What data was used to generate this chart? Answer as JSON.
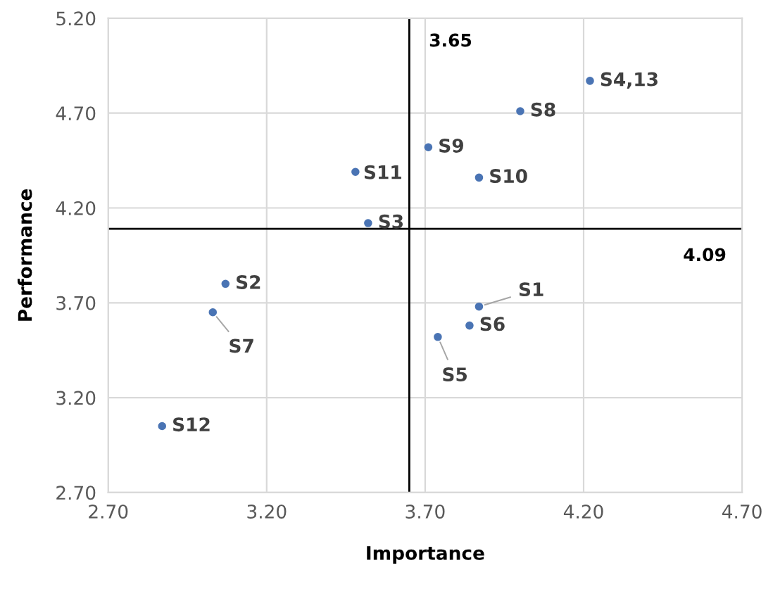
{
  "chart_data": {
    "type": "scatter",
    "xlabel": "Importance",
    "ylabel": "Performance",
    "x": [
      3.87,
      3.07,
      3.52,
      4.22,
      3.74,
      3.84,
      3.03,
      4.0,
      3.71,
      3.87,
      3.48,
      2.87
    ],
    "series": [
      {
        "color": "#4a74b4",
        "values": [
          3.68,
          3.8,
          4.12,
          4.87,
          3.52,
          3.58,
          3.65,
          4.71,
          4.52,
          4.36,
          4.39,
          3.05
        ]
      }
    ],
    "annotations": [
      {
        "text": "S1",
        "x": 3.87,
        "y": 3.68
      },
      {
        "text": "S2",
        "x": 3.07,
        "y": 3.8
      },
      {
        "text": "S3",
        "x": 3.52,
        "y": 4.12
      },
      {
        "text": "S4,13",
        "x": 4.22,
        "y": 4.87
      },
      {
        "text": "S5",
        "x": 3.74,
        "y": 3.52
      },
      {
        "text": "S6",
        "x": 3.84,
        "y": 3.58
      },
      {
        "text": "S7",
        "x": 3.03,
        "y": 3.65
      },
      {
        "text": "S8",
        "x": 4.0,
        "y": 4.71
      },
      {
        "text": "S9",
        "x": 3.71,
        "y": 4.52
      },
      {
        "text": "S10",
        "x": 3.87,
        "y": 4.36
      },
      {
        "text": "S11",
        "x": 3.48,
        "y": 4.39
      },
      {
        "text": "S12",
        "x": 2.87,
        "y": 3.05
      }
    ],
    "ref_lines": [
      {
        "axis": "x",
        "value": 3.65,
        "label": "3.65",
        "color": "#000000"
      },
      {
        "axis": "y",
        "value": 4.09,
        "label": "4.09",
        "color": "#000000"
      }
    ],
    "xlim": [
      2.7,
      4.7
    ],
    "ylim": [
      2.7,
      5.2
    ],
    "xticks": [
      {
        "value": 2.7,
        "label": "2.70"
      },
      {
        "value": 3.2,
        "label": "3.20"
      },
      {
        "value": 3.7,
        "label": "3.70"
      },
      {
        "value": 4.2,
        "label": "4.20"
      },
      {
        "value": 4.7,
        "label": "4.70"
      }
    ],
    "yticks": [
      {
        "value": 2.7,
        "label": "2.70"
      },
      {
        "value": 3.2,
        "label": "3.20"
      },
      {
        "value": 3.7,
        "label": "3.70"
      },
      {
        "value": 4.2,
        "label": "4.20"
      },
      {
        "value": 4.7,
        "label": "4.70"
      },
      {
        "value": 5.2,
        "label": "5.20"
      }
    ],
    "grid": true,
    "marker": "circle"
  }
}
